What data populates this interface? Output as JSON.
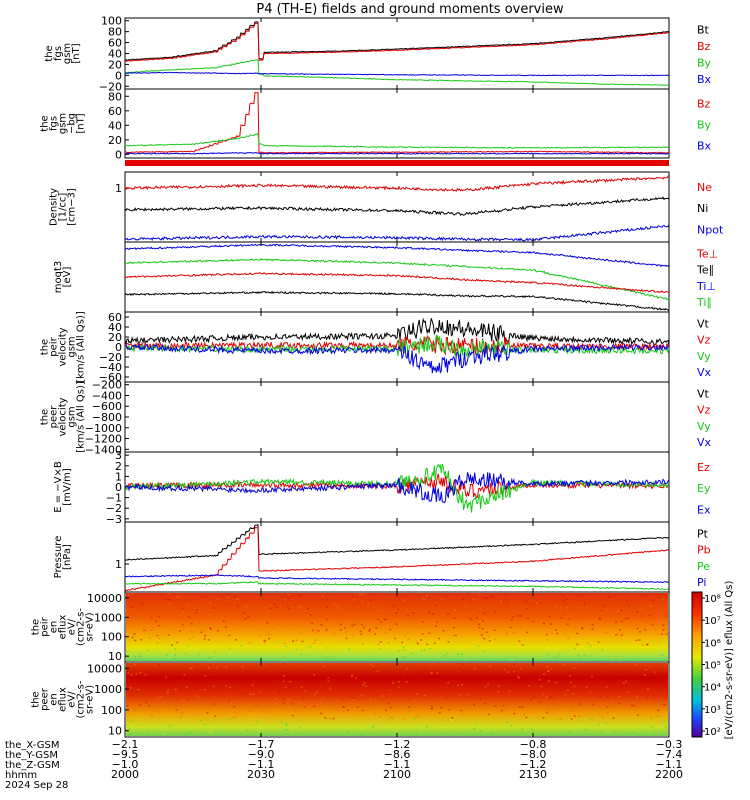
{
  "title": "P4 (TH-E) fields and ground moments overview",
  "colors": {
    "black": "#000000",
    "red": "#e00000",
    "green": "#18c818",
    "blue": "#0000e0"
  },
  "chart_data": [
    {
      "type": "line",
      "panel": "fgs",
      "ylabel": [
        "the",
        "fgs",
        "gsm",
        "[nT]"
      ],
      "yticks": [
        "100",
        "80",
        "60",
        "40",
        "20",
        "0",
        "−20"
      ],
      "ylim": [
        -25,
        105
      ],
      "legend": [
        {
          "label": "Bt",
          "color": "black"
        },
        {
          "label": "Bz",
          "color": "red"
        },
        {
          "label": "By",
          "color": "green"
        },
        {
          "label": "Bx",
          "color": "blue"
        }
      ],
      "x": [
        2000,
        2010,
        2020,
        2025,
        2029,
        2030,
        2031,
        2045,
        2100,
        2130,
        2145,
        2200
      ],
      "series": [
        {
          "name": "Bt",
          "color": "black",
          "values": [
            28,
            33,
            45,
            70,
            98,
            30,
            42,
            44,
            48,
            58,
            68,
            80
          ]
        },
        {
          "name": "Bz",
          "color": "red",
          "values": [
            26,
            31,
            43,
            67,
            95,
            28,
            40,
            42,
            46,
            56,
            66,
            78
          ]
        },
        {
          "name": "By",
          "color": "green",
          "values": [
            5,
            10,
            14,
            22,
            28,
            2,
            -1,
            -4,
            -8,
            -12,
            -16,
            -18
          ]
        },
        {
          "name": "Bx",
          "color": "blue",
          "values": [
            4,
            5,
            4,
            3,
            4,
            3,
            3,
            2,
            1,
            0,
            0,
            0
          ]
        }
      ]
    },
    {
      "type": "line",
      "panel": "fgs-dsl",
      "ylabel": [
        "the",
        "fgs",
        "gsm",
        "−bg",
        "[nT]"
      ],
      "yticks": [
        "80",
        "60",
        "40",
        "20",
        "0"
      ],
      "ylim": [
        -5,
        90
      ],
      "legend": [
        {
          "label": "Bz",
          "color": "red"
        },
        {
          "label": "By",
          "color": "green"
        },
        {
          "label": "Bx",
          "color": "blue"
        }
      ],
      "x": [
        2000,
        2015,
        2025,
        2029,
        2030,
        2031,
        2100,
        2130,
        2200
      ],
      "series": [
        {
          "name": "Bz",
          "color": "red",
          "values": [
            3,
            4,
            25,
            85,
            3,
            2,
            3,
            4,
            2
          ]
        },
        {
          "name": "By",
          "color": "green",
          "values": [
            12,
            14,
            22,
            28,
            14,
            12,
            10,
            9,
            10
          ]
        },
        {
          "name": "Bx",
          "color": "blue",
          "values": [
            1,
            1,
            2,
            2,
            1,
            1,
            1,
            1,
            1
          ]
        }
      ]
    },
    {
      "type": "line",
      "panel": "density",
      "ylabel": [
        "Density",
        "[1/cc]",
        "[cm−3]"
      ],
      "yticks": [
        "1"
      ],
      "ylim": [
        0,
        1.3
      ],
      "legend": [
        {
          "label": "Ne",
          "color": "red"
        },
        {
          "label": "Ni",
          "color": "black"
        },
        {
          "label": "Npot",
          "color": "blue"
        }
      ],
      "x": [
        2000,
        2030,
        2100,
        2115,
        2130,
        2200
      ],
      "series": [
        {
          "name": "Ne",
          "color": "red",
          "values": [
            1.0,
            1.05,
            1.0,
            0.96,
            1.08,
            1.2
          ]
        },
        {
          "name": "Ni",
          "color": "black",
          "values": [
            0.6,
            0.63,
            0.58,
            0.52,
            0.65,
            0.82
          ]
        },
        {
          "name": "Npot",
          "color": "blue",
          "values": [
            0.05,
            0.1,
            0.08,
            0.05,
            0.04,
            0.3
          ]
        }
      ]
    },
    {
      "type": "line",
      "panel": "temperature",
      "ylabel": [
        "moqt3",
        "[eV]"
      ],
      "yticks": [],
      "ylim": [
        0,
        10
      ],
      "legend": [
        {
          "label": "Te⊥",
          "color": "red"
        },
        {
          "label": "Te∥",
          "color": "black"
        },
        {
          "label": "Ti⊥",
          "color": "blue"
        },
        {
          "label": "Ti∥",
          "color": "green"
        }
      ],
      "x": [
        2000,
        2030,
        2100,
        2115,
        2130,
        2200
      ],
      "series": [
        {
          "name": "Ti⊥",
          "color": "blue",
          "values": [
            9.0,
            9.6,
            9.2,
            8.8,
            8.5,
            6.5
          ]
        },
        {
          "name": "Ti∥",
          "color": "green",
          "values": [
            7.0,
            7.5,
            7.0,
            6.5,
            6.0,
            1.8
          ]
        },
        {
          "name": "Te⊥",
          "color": "red",
          "values": [
            5.0,
            5.5,
            5.2,
            4.6,
            4.2,
            2.8
          ]
        },
        {
          "name": "Te∥",
          "color": "black",
          "values": [
            2.5,
            2.8,
            2.6,
            2.3,
            2.2,
            0.3
          ]
        }
      ]
    },
    {
      "type": "line",
      "panel": "peir-velocity",
      "ylabel": [
        "the",
        "peir",
        "velocity",
        "gsm",
        "[km/s (All Qs)]"
      ],
      "yticks": [
        "60",
        "40",
        "20",
        "0",
        "−20",
        "−40",
        "−60"
      ],
      "ylim": [
        -70,
        70
      ],
      "legend": [
        {
          "label": "Vt",
          "color": "black"
        },
        {
          "label": "Vz",
          "color": "red"
        },
        {
          "label": "Vy",
          "color": "green"
        },
        {
          "label": "Vx",
          "color": "blue"
        }
      ],
      "x": [
        2000,
        2030,
        2100,
        2108,
        2115,
        2130,
        2200
      ],
      "series": [
        {
          "name": "Vt",
          "color": "black",
          "values": [
            12,
            20,
            22,
            45,
            35,
            18,
            10
          ]
        },
        {
          "name": "Vz",
          "color": "red",
          "values": [
            2,
            4,
            3,
            5,
            2,
            2,
            1
          ]
        },
        {
          "name": "Vy",
          "color": "green",
          "values": [
            -2,
            -5,
            -3,
            8,
            -4,
            -6,
            -8
          ]
        },
        {
          "name": "Vx",
          "color": "blue",
          "values": [
            0,
            -8,
            -6,
            -45,
            -20,
            -4,
            0
          ]
        }
      ]
    },
    {
      "type": "line",
      "panel": "peer-velocity",
      "ylabel": [
        "the",
        "peer",
        "velocity",
        "gsm",
        "[km/s (All Qs)]"
      ],
      "yticks": [
        "−200",
        "−400",
        "−600",
        "−800",
        "−1000",
        "−1200",
        "−1400"
      ],
      "ylim": [
        -1450,
        -150
      ],
      "legend": [
        {
          "label": "Vt",
          "color": "black"
        },
        {
          "label": "Vz",
          "color": "red"
        },
        {
          "label": "Vy",
          "color": "green"
        },
        {
          "label": "Vx",
          "color": "blue"
        }
      ],
      "series": []
    },
    {
      "type": "line",
      "panel": "efield",
      "ylabel": [
        "E = −V×B",
        "[mV/m]"
      ],
      "yticks": [
        "3",
        "2",
        "1",
        "0",
        "−1",
        "−2",
        "−3"
      ],
      "ylim": [
        -3.3,
        3.3
      ],
      "legend": [
        {
          "label": "Ez",
          "color": "red"
        },
        {
          "label": "Ey",
          "color": "green"
        },
        {
          "label": "Ex",
          "color": "blue"
        }
      ],
      "x": [
        2000,
        2030,
        2100,
        2110,
        2115,
        2130,
        2200
      ],
      "series": [
        {
          "name": "Ez",
          "color": "red",
          "values": [
            0.1,
            0.2,
            0.1,
            0.6,
            -0.4,
            0.2,
            0.1
          ]
        },
        {
          "name": "Ey",
          "color": "green",
          "values": [
            0,
            0.5,
            0.3,
            1.5,
            -1.8,
            0.4,
            0.2
          ]
        },
        {
          "name": "Ex",
          "color": "blue",
          "values": [
            0,
            -0.3,
            0.2,
            -1.0,
            0.8,
            0.3,
            0.5
          ]
        }
      ]
    },
    {
      "type": "line",
      "panel": "pressure",
      "ylabel": [
        "Pressure",
        "[nPa]"
      ],
      "yticks": [
        "1"
      ],
      "ylim": [
        0,
        2.5
      ],
      "legend": [
        {
          "label": "Pt",
          "color": "black"
        },
        {
          "label": "Pb",
          "color": "red"
        },
        {
          "label": "Pe",
          "color": "green"
        },
        {
          "label": "Pi",
          "color": "blue"
        }
      ],
      "x": [
        2000,
        2020,
        2029,
        2030,
        2100,
        2130,
        2200
      ],
      "series": [
        {
          "name": "Pt",
          "color": "black",
          "values": [
            1.15,
            1.3,
            2.4,
            1.35,
            1.5,
            1.7,
            1.95
          ]
        },
        {
          "name": "Pb",
          "color": "red",
          "values": [
            0.05,
            0.6,
            2.3,
            0.75,
            0.9,
            1.1,
            1.5
          ]
        },
        {
          "name": "Pe",
          "color": "green",
          "values": [
            0.3,
            0.3,
            0.35,
            0.3,
            0.25,
            0.2,
            0.1
          ]
        },
        {
          "name": "Pi",
          "color": "blue",
          "values": [
            0.55,
            0.6,
            0.55,
            0.5,
            0.45,
            0.4,
            0.35
          ]
        }
      ]
    },
    {
      "type": "heatmap",
      "panel": "peir-eflux",
      "ylabel": [
        "the",
        "peir",
        "en",
        "eflux",
        "eV/",
        "(cm2-s-",
        "sr-eV)"
      ],
      "yticks": [
        "10000",
        "1000",
        "100",
        "10"
      ],
      "ylim": [
        5,
        20000
      ],
      "log": true
    },
    {
      "type": "heatmap",
      "panel": "peer-eflux",
      "ylabel": [
        "the",
        "peer",
        "en",
        "eflux",
        "eV/",
        "(cm2-s-",
        "sr-eV)"
      ],
      "yticks": [
        "10000",
        "1000",
        "100",
        "10"
      ],
      "ylim": [
        5,
        20000
      ],
      "log": true
    }
  ],
  "colorbar": {
    "label": "[eV/(cm2-s-sr-eV)] eflux (All Qs)",
    "ticks": [
      "10⁸",
      "10⁷",
      "10⁶",
      "10⁵",
      "10⁴",
      "10³",
      "10²"
    ]
  },
  "x_axis": {
    "ticks": [
      2000,
      2030,
      2100,
      2130,
      2200
    ],
    "rows": [
      {
        "label": "the_X-GSM",
        "values": [
          "−2.1",
          "−1.7",
          "−1.2",
          "−0.8",
          "−0.3"
        ]
      },
      {
        "label": "the_Y-GSM",
        "values": [
          "−9.5",
          "−9.0",
          "−8.6",
          "−8.0",
          "−7.4"
        ]
      },
      {
        "label": "the_Z-GSM",
        "values": [
          "−1.0",
          "−1.1",
          "−1.1",
          "−1.2",
          "−1.1"
        ]
      },
      {
        "label": "hhmm",
        "values": [
          "2000",
          "2030",
          "2100",
          "2130",
          "2200"
        ]
      }
    ],
    "date": "2024 Sep 28"
  }
}
